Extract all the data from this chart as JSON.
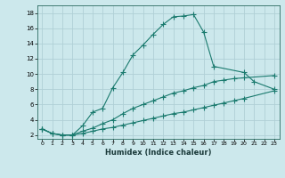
{
  "xlabel": "Humidex (Indice chaleur)",
  "bg_color": "#cce8ec",
  "grid_color": "#b0d0d6",
  "line_color": "#1a7a6e",
  "xlim": [
    -0.5,
    23.5
  ],
  "ylim": [
    1.5,
    19
  ],
  "xticks": [
    0,
    1,
    2,
    3,
    4,
    5,
    6,
    7,
    8,
    9,
    10,
    11,
    12,
    13,
    14,
    15,
    16,
    17,
    18,
    19,
    20,
    21,
    22,
    23
  ],
  "yticks": [
    2,
    4,
    6,
    8,
    10,
    12,
    14,
    16,
    18
  ],
  "series1_x": [
    0,
    1,
    2,
    3,
    4,
    5,
    6,
    7,
    8,
    9,
    10,
    11,
    12,
    13,
    14,
    15,
    16,
    17,
    20,
    21,
    23
  ],
  "series1_y": [
    2.8,
    2.2,
    2.0,
    2.0,
    3.2,
    5.0,
    5.5,
    8.2,
    10.2,
    12.5,
    13.8,
    15.2,
    16.5,
    17.5,
    17.6,
    17.8,
    15.5,
    11.0,
    10.2,
    9.0,
    8.0
  ],
  "series2_x": [
    0,
    1,
    2,
    3,
    4,
    5,
    6,
    7,
    8,
    9,
    10,
    11,
    12,
    13,
    14,
    15,
    16,
    17,
    18,
    19,
    20,
    23
  ],
  "series2_y": [
    2.8,
    2.2,
    2.0,
    2.0,
    2.5,
    2.9,
    3.5,
    4.0,
    4.8,
    5.5,
    6.0,
    6.5,
    7.0,
    7.5,
    7.8,
    8.2,
    8.5,
    9.0,
    9.2,
    9.4,
    9.5,
    9.8
  ],
  "series3_x": [
    0,
    1,
    2,
    3,
    4,
    5,
    6,
    7,
    8,
    9,
    10,
    11,
    12,
    13,
    14,
    15,
    16,
    17,
    18,
    19,
    20,
    23
  ],
  "series3_y": [
    2.8,
    2.2,
    2.0,
    2.0,
    2.2,
    2.5,
    2.8,
    3.0,
    3.3,
    3.6,
    3.9,
    4.2,
    4.5,
    4.8,
    5.0,
    5.3,
    5.6,
    5.9,
    6.2,
    6.5,
    6.8,
    7.8
  ]
}
